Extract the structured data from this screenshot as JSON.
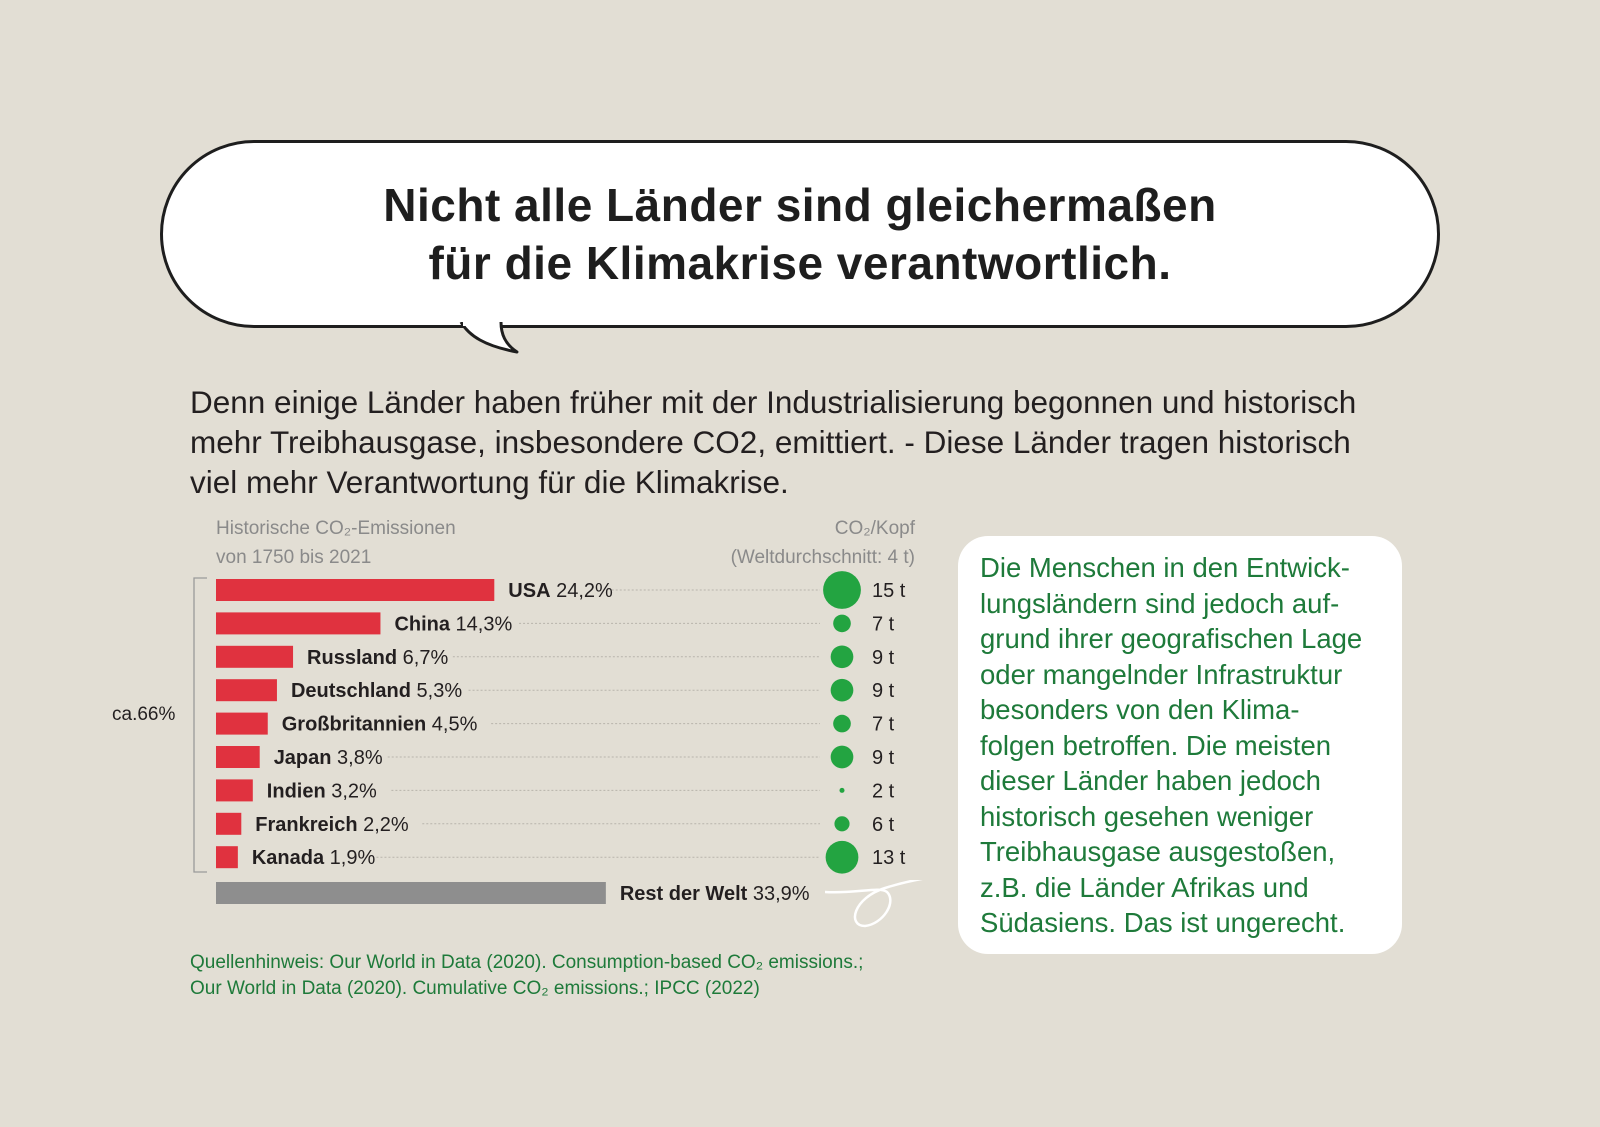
{
  "headline": {
    "line1": "Nicht alle Länder sind gleichermaßen",
    "line2": "für die Klimakrise verantwortlich."
  },
  "intro": "Denn einige Länder haben früher mit der Industrialisierung begonnen und historisch mehr Treibhausgase, insbesondere CO2, emittiert. - Diese Länder tragen historisch viel mehr Verantwortung für die Klimakrise.",
  "chart_headers": {
    "left_line1": "Historische CO₂-Emissionen",
    "left_line2": "von 1750 bis 2021",
    "right_line1": "CO₂/Kopf",
    "right_line2": "(Weltdurchschnitt: 4 t)"
  },
  "side_label": "ca.66%",
  "chart_data": {
    "type": "bar",
    "orientation": "horizontal",
    "categories": [
      "USA",
      "China",
      "Russland",
      "Deutschland",
      "Großbritannien",
      "Japan",
      "Indien",
      "Frankreich",
      "Kanada",
      "Rest der Welt"
    ],
    "values": [
      24.2,
      14.3,
      6.7,
      5.3,
      4.5,
      3.8,
      3.2,
      2.2,
      1.9,
      33.9
    ],
    "value_labels": [
      "24,2%",
      "14,3%",
      "6,7%",
      "5,3%",
      "4,5%",
      "3,8%",
      "3,2%",
      "2,2%",
      "1,9%",
      "33,9%"
    ],
    "per_capita": {
      "values": [
        15,
        7,
        9,
        9,
        7,
        9,
        2,
        6,
        13
      ],
      "labels": [
        "15 t",
        "7 t",
        "9 t",
        "9 t",
        "7 t",
        "9 t",
        "2 t",
        "6 t",
        "13 t"
      ]
    },
    "bar_colors": {
      "countries": "#e0323f",
      "rest": "#8e8e8e"
    },
    "dot_color": "#23a441",
    "grid": false
  },
  "info_box": {
    "lines": [
      "Die Menschen in den Entwick-",
      "lungsländern sind jedoch auf-",
      "grund ihrer geografischen Lage",
      "oder mangelnder Infrastruktur",
      "besonders von den Klima-",
      "folgen betroffen. Die meisten",
      "dieser Länder haben jedoch",
      "historisch gesehen weniger",
      "Treibhausgase ausgestoßen,",
      "z.B. die Länder Afrikas und",
      "Südasiens. Das ist ungerecht."
    ]
  },
  "source": {
    "line1": "Quellenhinweis: Our World in Data (2020). Consumption-based CO₂ emissions.;",
    "line2": "Our World in Data (2020). Cumulative CO₂ emissions.; IPCC (2022)"
  },
  "colors": {
    "background": "#e2ded4",
    "text_green": "#1e7a3a",
    "bar_red": "#e0323f",
    "bar_gray": "#8e8e8e",
    "dot_green": "#23a441"
  }
}
